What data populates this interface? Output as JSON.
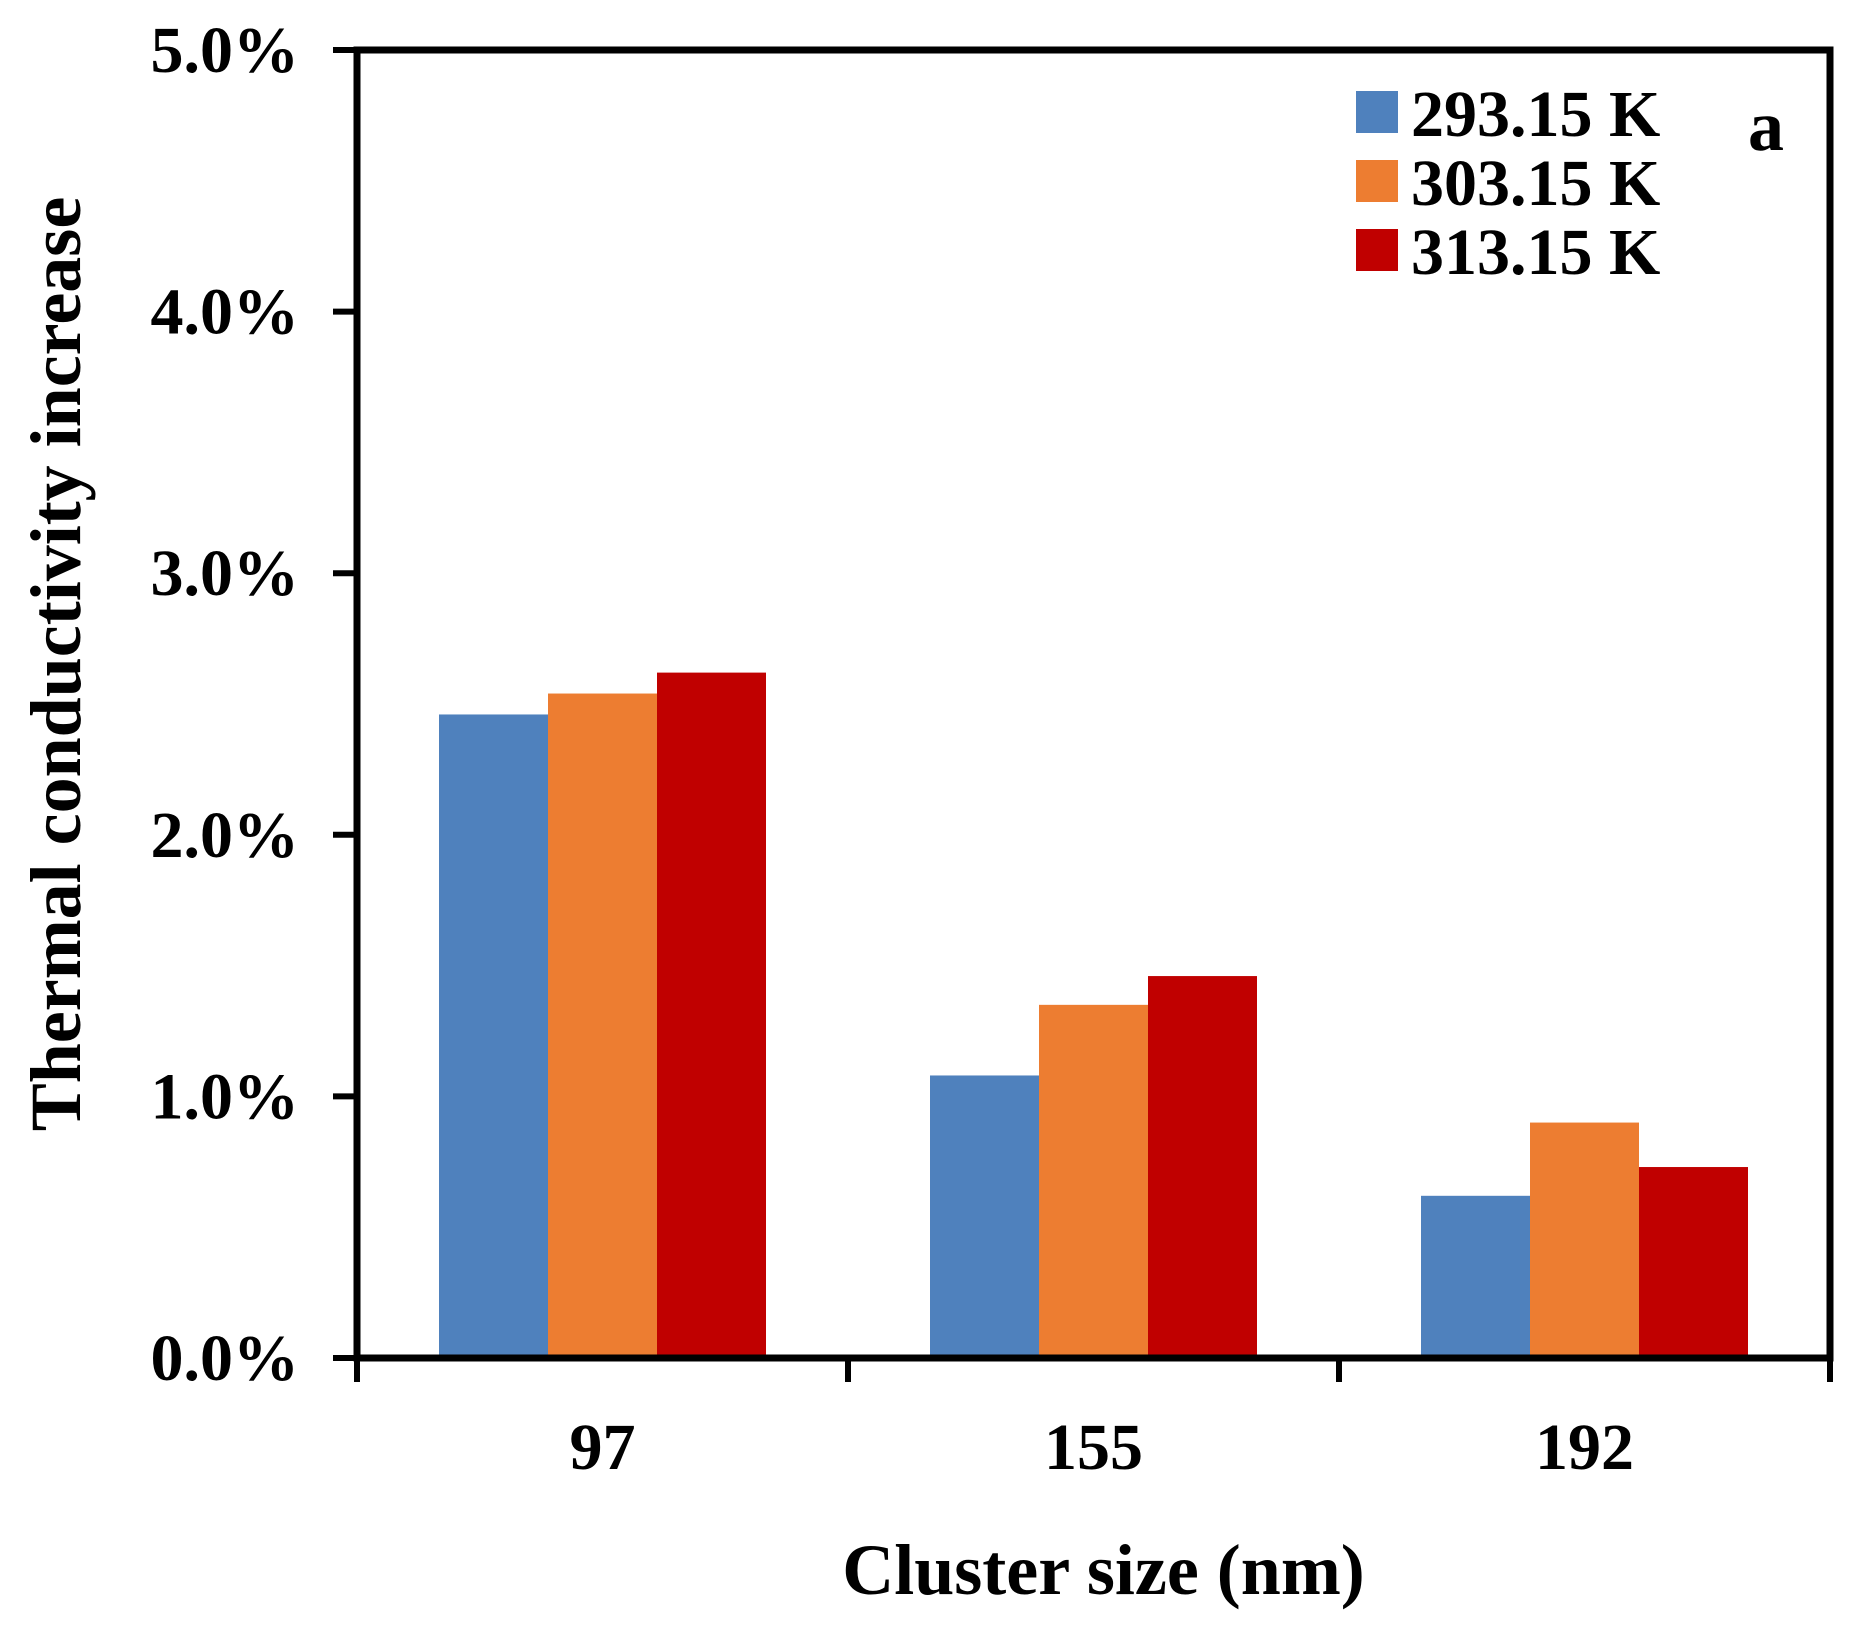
{
  "chart_data": {
    "type": "bar",
    "title": "",
    "panel_label": "a",
    "xlabel": "Cluster size (nm)",
    "ylabel": "Thermal conductivity increase",
    "categories": [
      "97",
      "155",
      "192"
    ],
    "series": [
      {
        "name": "293.15 K",
        "color": "#4f81bd",
        "values": [
          2.46,
          1.08,
          0.62
        ]
      },
      {
        "name": "303.15 K",
        "color": "#ed7d31",
        "values": [
          2.54,
          1.35,
          0.9
        ]
      },
      {
        "name": "313.15 K",
        "color": "#c00000",
        "values": [
          2.62,
          1.46,
          0.73
        ]
      }
    ],
    "ylim": [
      0,
      5
    ],
    "yticks": [
      0,
      1,
      2,
      3,
      4,
      5
    ],
    "ytick_labels": [
      "0.0%",
      "1.0%",
      "2.0%",
      "3.0%",
      "4.0%",
      "5.0%"
    ],
    "grid": false,
    "legend_position": "top-right"
  }
}
